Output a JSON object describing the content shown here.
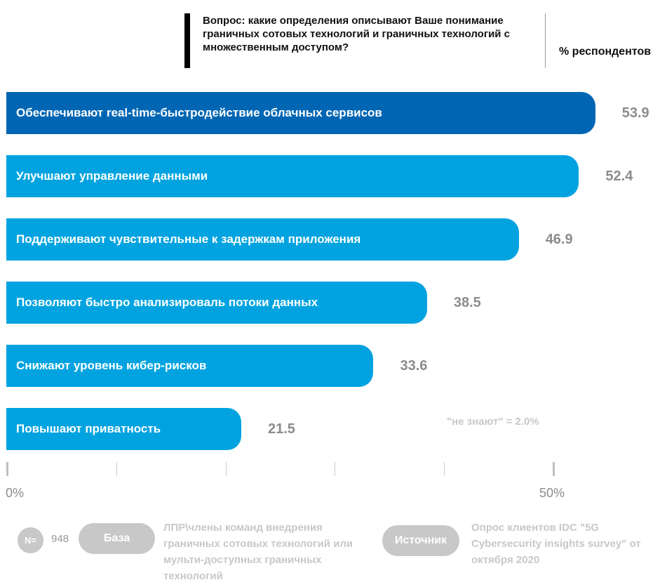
{
  "header": {
    "question": "Вопрос: какие определения описывают Ваше понимание граничных сотовых технологий и граничных технологий с множественным доступом?",
    "unit_label": "% респондентов"
  },
  "chart_data": {
    "type": "bar",
    "orientation": "horizontal",
    "categories": [
      "Обеспечивают real-time-быстродействие облачных сервисов",
      "Улучшают управление данными",
      "Поддерживают чувствительные к задержкам приложения",
      "Позволяют быстро анализироваль потоки данных",
      "Снижают уровень кибер-рисков",
      "Повышают приватность"
    ],
    "values": [
      53.9,
      52.4,
      46.9,
      38.5,
      33.6,
      21.5
    ],
    "value_labels": [
      "53.9",
      "52.4",
      "46.9",
      "38.5",
      "33.6",
      "21.5"
    ],
    "xlim": [
      0,
      50
    ],
    "x_tick_labels": [
      "0%",
      "50%"
    ],
    "colors": {
      "highlight": "#0066b3",
      "bar": "#00a3e0"
    },
    "annotation": "\"не знают\" = 2.0%"
  },
  "footer": {
    "n_label": "N=",
    "n_value": "948",
    "base_label": "База",
    "base_text": "ЛПР\\члены команд внедрения граничных сотовых технологий или мульти-доступных  граничных технологий",
    "source_label": "Источник",
    "source_text": "Опрос клиентов IDC \"5G Cybersecurity insights survey\" от октября 2020"
  }
}
